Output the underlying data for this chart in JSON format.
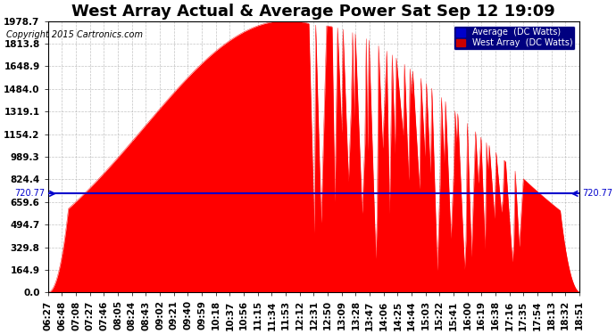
{
  "title": "West Array Actual & Average Power Sat Sep 12 19:09",
  "copyright": "Copyright 2015 Cartronics.com",
  "legend_labels": [
    "Average  (DC Watts)",
    "West Array  (DC Watts)"
  ],
  "legend_colors": [
    "#0000cc",
    "#cc0000"
  ],
  "average_value": 720.77,
  "y_max": 1978.7,
  "y_ticks": [
    0.0,
    164.9,
    329.8,
    494.7,
    659.6,
    824.4,
    989.3,
    1154.2,
    1319.1,
    1484.0,
    1648.9,
    1813.8,
    1978.7
  ],
  "x_labels": [
    "06:27",
    "06:48",
    "07:08",
    "07:27",
    "07:46",
    "08:05",
    "08:24",
    "08:43",
    "09:02",
    "09:21",
    "09:40",
    "09:59",
    "10:18",
    "10:37",
    "10:56",
    "11:15",
    "11:34",
    "11:53",
    "12:12",
    "12:31",
    "12:50",
    "13:09",
    "13:28",
    "13:47",
    "14:06",
    "14:25",
    "14:44",
    "15:03",
    "15:22",
    "15:41",
    "16:00",
    "16:19",
    "16:38",
    "17:16",
    "17:35",
    "17:54",
    "18:13",
    "18:32",
    "18:51"
  ],
  "fill_color": "#ff0000",
  "line_color": "#ff0000",
  "avg_line_color": "#0000cc",
  "bg_color": "#ffffff",
  "grid_color": "#aaaaaa",
  "text_color": "#000000",
  "title_fontsize": 13,
  "axis_fontsize": 7.5
}
